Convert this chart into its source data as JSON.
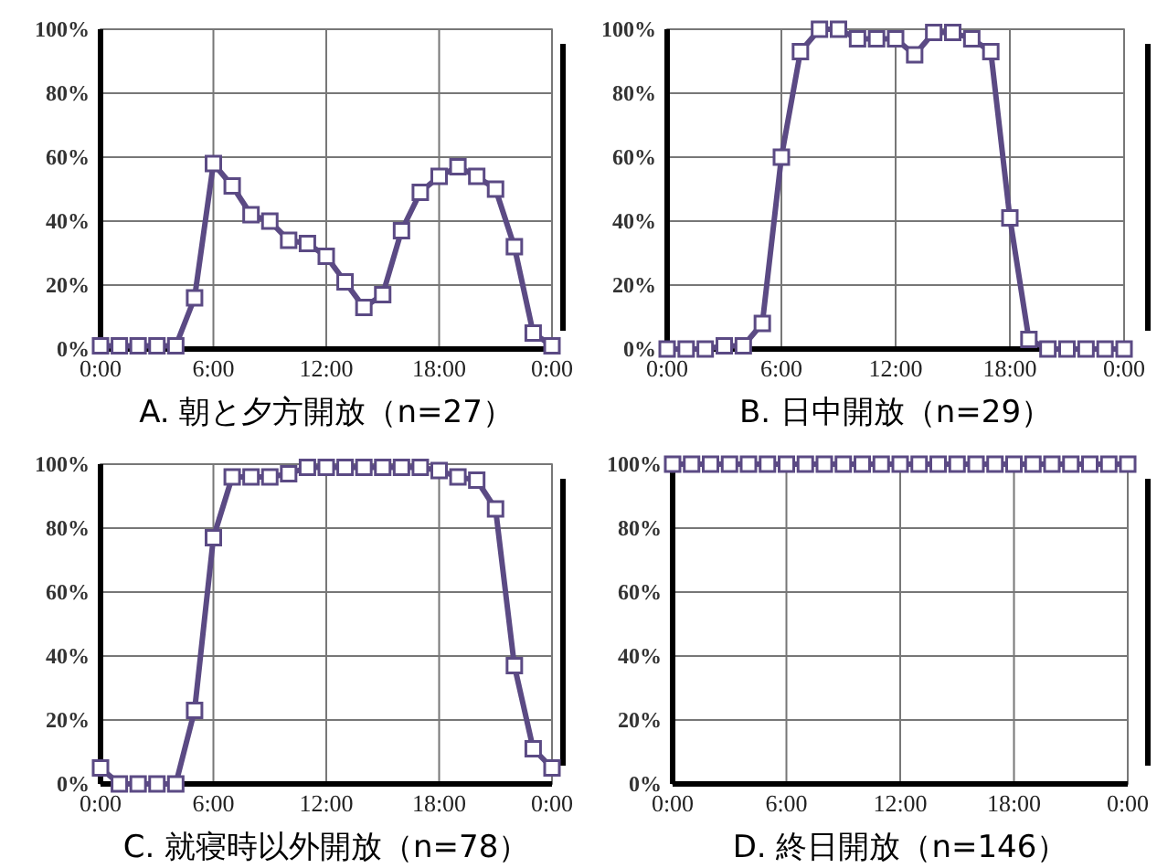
{
  "chart_data": [
    {
      "type": "line",
      "title": "A.  朝と夕方開放（n=27）",
      "x": [
        0,
        1,
        2,
        3,
        4,
        5,
        6,
        7,
        8,
        9,
        10,
        11,
        12,
        13,
        14,
        15,
        16,
        17,
        18,
        19,
        20,
        21,
        22,
        23,
        24
      ],
      "xlim": [
        0,
        24
      ],
      "xticks": [
        {
          "value": 0,
          "label": "0:00"
        },
        {
          "value": 6,
          "label": "6:00"
        },
        {
          "value": 12,
          "label": "12:00"
        },
        {
          "value": 18,
          "label": "18:00"
        },
        {
          "value": 24,
          "label": "0:00"
        }
      ],
      "ylim": [
        0,
        100
      ],
      "yticks": [
        {
          "value": 0,
          "label": "0%"
        },
        {
          "value": 20,
          "label": "20%"
        },
        {
          "value": 40,
          "label": "40%"
        },
        {
          "value": 60,
          "label": "60%"
        },
        {
          "value": 80,
          "label": "80%"
        },
        {
          "value": 100,
          "label": "100%"
        }
      ],
      "grid": true,
      "marker": "square",
      "line_style": "solid",
      "series": [
        {
          "color": "#5b4a84",
          "values": [
            1,
            1,
            1,
            1,
            1,
            16,
            58,
            51,
            42,
            40,
            34,
            33,
            29,
            21,
            13,
            17,
            37,
            49,
            54,
            57,
            54,
            50,
            32,
            5,
            1
          ]
        }
      ]
    },
    {
      "type": "line",
      "title": "B.  日中開放（n=29）",
      "x": [
        0,
        1,
        2,
        3,
        4,
        5,
        6,
        7,
        8,
        9,
        10,
        11,
        12,
        13,
        14,
        15,
        16,
        17,
        18,
        19,
        20,
        21,
        22,
        23,
        24
      ],
      "xlim": [
        0,
        24
      ],
      "xticks": [
        {
          "value": 0,
          "label": "0:00"
        },
        {
          "value": 6,
          "label": "6:00"
        },
        {
          "value": 12,
          "label": "12:00"
        },
        {
          "value": 18,
          "label": "18:00"
        },
        {
          "value": 24,
          "label": "0:00"
        }
      ],
      "ylim": [
        0,
        100
      ],
      "yticks": [
        {
          "value": 0,
          "label": "0%"
        },
        {
          "value": 20,
          "label": "20%"
        },
        {
          "value": 40,
          "label": "40%"
        },
        {
          "value": 60,
          "label": "60%"
        },
        {
          "value": 80,
          "label": "80%"
        },
        {
          "value": 100,
          "label": "100%"
        }
      ],
      "grid": true,
      "marker": "square",
      "line_style": "solid",
      "series": [
        {
          "color": "#5b4a84",
          "values": [
            0,
            0,
            0,
            1,
            1,
            8,
            60,
            93,
            100,
            100,
            97,
            97,
            97,
            92,
            99,
            99,
            97,
            93,
            41,
            3,
            0,
            0,
            0,
            0,
            0
          ]
        }
      ]
    },
    {
      "type": "line",
      "title": "C.  就寝時以外開放（n=78）",
      "x": [
        0,
        1,
        2,
        3,
        4,
        5,
        6,
        7,
        8,
        9,
        10,
        11,
        12,
        13,
        14,
        15,
        16,
        17,
        18,
        19,
        20,
        21,
        22,
        23,
        24
      ],
      "xlim": [
        0,
        24
      ],
      "xticks": [
        {
          "value": 0,
          "label": "0:00"
        },
        {
          "value": 6,
          "label": "6:00"
        },
        {
          "value": 12,
          "label": "12:00"
        },
        {
          "value": 18,
          "label": "18:00"
        },
        {
          "value": 24,
          "label": "0:00"
        }
      ],
      "ylim": [
        0,
        100
      ],
      "yticks": [
        {
          "value": 0,
          "label": "0%"
        },
        {
          "value": 20,
          "label": "20%"
        },
        {
          "value": 40,
          "label": "40%"
        },
        {
          "value": 60,
          "label": "60%"
        },
        {
          "value": 80,
          "label": "80%"
        },
        {
          "value": 100,
          "label": "100%"
        }
      ],
      "grid": true,
      "marker": "square",
      "line_style": "solid",
      "series": [
        {
          "color": "#5b4a84",
          "values": [
            5,
            0,
            0,
            0,
            0,
            23,
            77,
            96,
            96,
            96,
            97,
            99,
            99,
            99,
            99,
            99,
            99,
            99,
            98,
            96,
            95,
            86,
            37,
            11,
            5
          ]
        }
      ]
    },
    {
      "type": "line",
      "title": "D.  終日開放（n=146）",
      "x": [
        0,
        1,
        2,
        3,
        4,
        5,
        6,
        7,
        8,
        9,
        10,
        11,
        12,
        13,
        14,
        15,
        16,
        17,
        18,
        19,
        20,
        21,
        22,
        23,
        24
      ],
      "xlim": [
        0,
        24
      ],
      "xticks": [
        {
          "value": 0,
          "label": "0:00"
        },
        {
          "value": 6,
          "label": "6:00"
        },
        {
          "value": 12,
          "label": "12:00"
        },
        {
          "value": 18,
          "label": "18:00"
        },
        {
          "value": 24,
          "label": "0:00"
        }
      ],
      "ylim": [
        0,
        100
      ],
      "yticks": [
        {
          "value": 0,
          "label": "0%"
        },
        {
          "value": 20,
          "label": "20%"
        },
        {
          "value": 40,
          "label": "40%"
        },
        {
          "value": 60,
          "label": "60%"
        },
        {
          "value": 80,
          "label": "80%"
        },
        {
          "value": 100,
          "label": "100%"
        }
      ],
      "grid": true,
      "marker": "square",
      "line_style": "solid",
      "series": [
        {
          "color": "#5b4a84",
          "values": [
            100,
            100,
            100,
            100,
            100,
            100,
            100,
            100,
            100,
            100,
            100,
            100,
            100,
            100,
            100,
            100,
            100,
            100,
            100,
            100,
            100,
            100,
            100,
            100,
            100
          ]
        }
      ]
    }
  ]
}
